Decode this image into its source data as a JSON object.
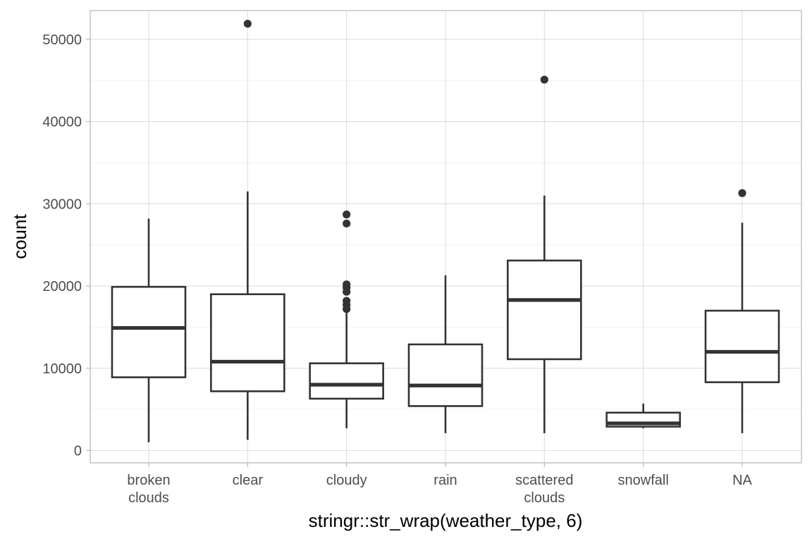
{
  "chart_data": {
    "type": "boxplot",
    "xlabel": "stringr::str_wrap(weather_type, 6)",
    "ylabel": "count",
    "ylim": [
      -1500,
      53500
    ],
    "yticks": [
      0,
      10000,
      20000,
      30000,
      40000,
      50000
    ],
    "grid": true,
    "categories": [
      [
        "broken",
        "clouds"
      ],
      [
        "clear"
      ],
      [
        "cloudy"
      ],
      [
        "rain"
      ],
      [
        "scattered",
        "clouds"
      ],
      [
        "snowfall"
      ],
      [
        "NA"
      ]
    ],
    "boxes": [
      {
        "whisker_low": 1000,
        "q1": 8900,
        "median": 14900,
        "q3": 19900,
        "whisker_high": 28200,
        "outliers": []
      },
      {
        "whisker_low": 1300,
        "q1": 7200,
        "median": 10800,
        "q3": 19000,
        "whisker_high": 31500,
        "outliers": [
          51900
        ]
      },
      {
        "whisker_low": 2700,
        "q1": 6300,
        "median": 8000,
        "q3": 10600,
        "whisker_high": 17100,
        "outliers": [
          17200,
          17700,
          18200,
          19300,
          19800,
          20200,
          27600,
          28700
        ]
      },
      {
        "whisker_low": 2100,
        "q1": 5400,
        "median": 7900,
        "q3": 12900,
        "whisker_high": 21300,
        "outliers": []
      },
      {
        "whisker_low": 2100,
        "q1": 11100,
        "median": 18300,
        "q3": 23100,
        "whisker_high": 31000,
        "outliers": [
          45100
        ]
      },
      {
        "whisker_low": 2700,
        "q1": 2900,
        "median": 3300,
        "q3": 4600,
        "whisker_high": 5700,
        "outliers": []
      },
      {
        "whisker_low": 2100,
        "q1": 8300,
        "median": 12000,
        "q3": 17000,
        "whisker_high": 27700,
        "outliers": [
          31300
        ]
      }
    ],
    "colors": {
      "box_stroke": "#333333",
      "box_fill": "#ffffff",
      "grid": "#dedede",
      "panel_border": "#b3b3b3",
      "tick_text": "#4d4d4d",
      "title_text": "#000000"
    }
  }
}
